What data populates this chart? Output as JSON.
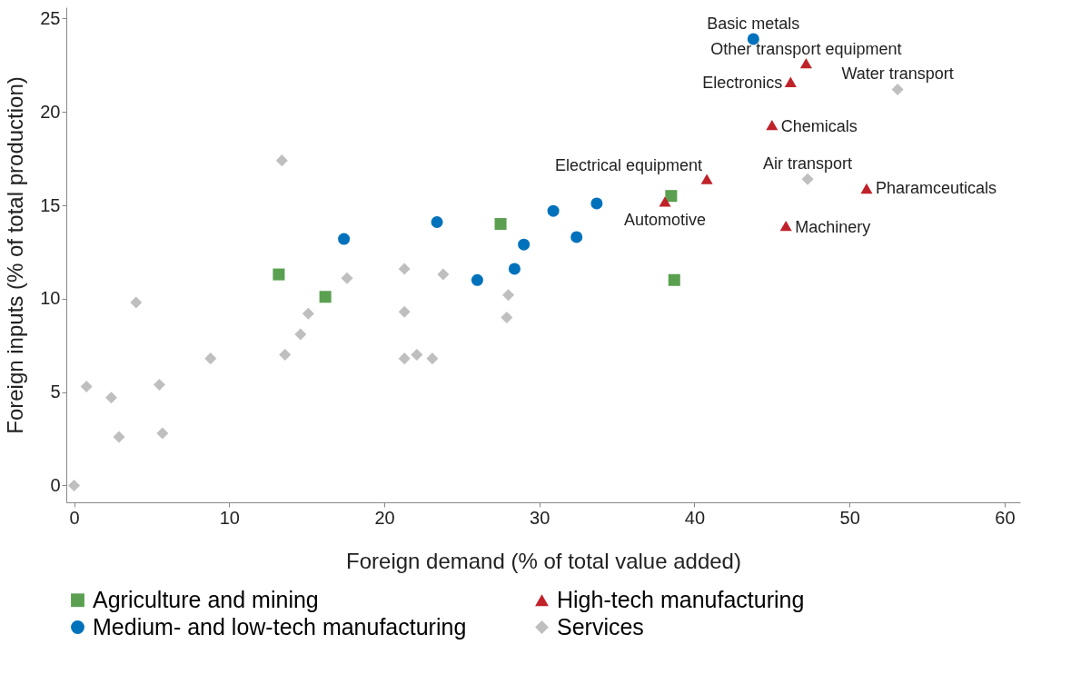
{
  "chart_data": {
    "type": "scatter",
    "xlabel": "Foreign demand (% of total value added)",
    "ylabel": "Foreign inputs (% of total production)",
    "xlim": [
      -0.5,
      61
    ],
    "ylim": [
      -0.9,
      25.6
    ],
    "xticks": [
      0,
      10,
      20,
      30,
      40,
      50,
      60
    ],
    "yticks": [
      0,
      5,
      10,
      15,
      20,
      25
    ],
    "grid": false,
    "legend": "bottom",
    "series": [
      {
        "name": "Agriculture and mining",
        "color": "#5aa050",
        "marker": "square",
        "x": [
          13.2,
          16.2,
          27.5,
          38.5,
          38.7
        ],
        "values": [
          11.3,
          10.1,
          14.0,
          15.5,
          11.0
        ]
      },
      {
        "name": "High-tech manufacturing",
        "color": "#c0222a",
        "marker": "triangle",
        "x": [
          40.8,
          47.2,
          46.2,
          45.0,
          51.1,
          45.9,
          38.1
        ],
        "values": [
          16.4,
          22.6,
          21.6,
          19.3,
          15.9,
          13.9,
          15.2
        ]
      },
      {
        "name": "Medium- and low-tech manufacturing",
        "color": "#0072bc",
        "marker": "circle",
        "x": [
          17.4,
          23.4,
          26.0,
          28.4,
          29.0,
          30.9,
          32.4,
          33.7,
          43.8
        ],
        "values": [
          13.2,
          14.1,
          11.0,
          11.6,
          12.9,
          14.7,
          13.3,
          15.1,
          23.9
        ]
      },
      {
        "name": "Services",
        "color": "#bfbfbf",
        "marker": "diamond",
        "x": [
          53.1,
          47.3,
          13.4,
          17.6,
          21.3,
          23.8,
          21.3,
          28.0,
          27.9,
          15.1,
          14.6,
          13.6,
          21.3,
          22.1,
          23.1,
          4.0,
          8.8,
          0.8,
          2.4,
          5.5,
          5.7,
          2.9,
          0
        ],
        "values": [
          21.2,
          16.4,
          17.4,
          11.1,
          11.6,
          11.3,
          9.3,
          10.2,
          9.0,
          9.2,
          8.1,
          7.0,
          6.8,
          7.0,
          6.8,
          9.8,
          6.8,
          5.3,
          4.7,
          5.4,
          2.8,
          2.6,
          0
        ]
      }
    ],
    "annotations": [
      {
        "text": "Basic metals",
        "x": 43.8,
        "y": 23.9
      },
      {
        "text": "Other transport equipment",
        "x": 47.2,
        "y": 22.6
      },
      {
        "text": "Electronics",
        "x": 46.2,
        "y": 21.6
      },
      {
        "text": "Water transport",
        "x": 53.1,
        "y": 21.2
      },
      {
        "text": "Chemicals",
        "x": 45.0,
        "y": 19.3
      },
      {
        "text": "Electrical equipment",
        "x": 40.8,
        "y": 16.4
      },
      {
        "text": "Air transport",
        "x": 47.3,
        "y": 16.4
      },
      {
        "text": "Pharamceuticals",
        "x": 51.1,
        "y": 15.9
      },
      {
        "text": "Automotive",
        "x": 38.1,
        "y": 15.2
      },
      {
        "text": "Machinery",
        "x": 45.9,
        "y": 13.9
      }
    ]
  }
}
